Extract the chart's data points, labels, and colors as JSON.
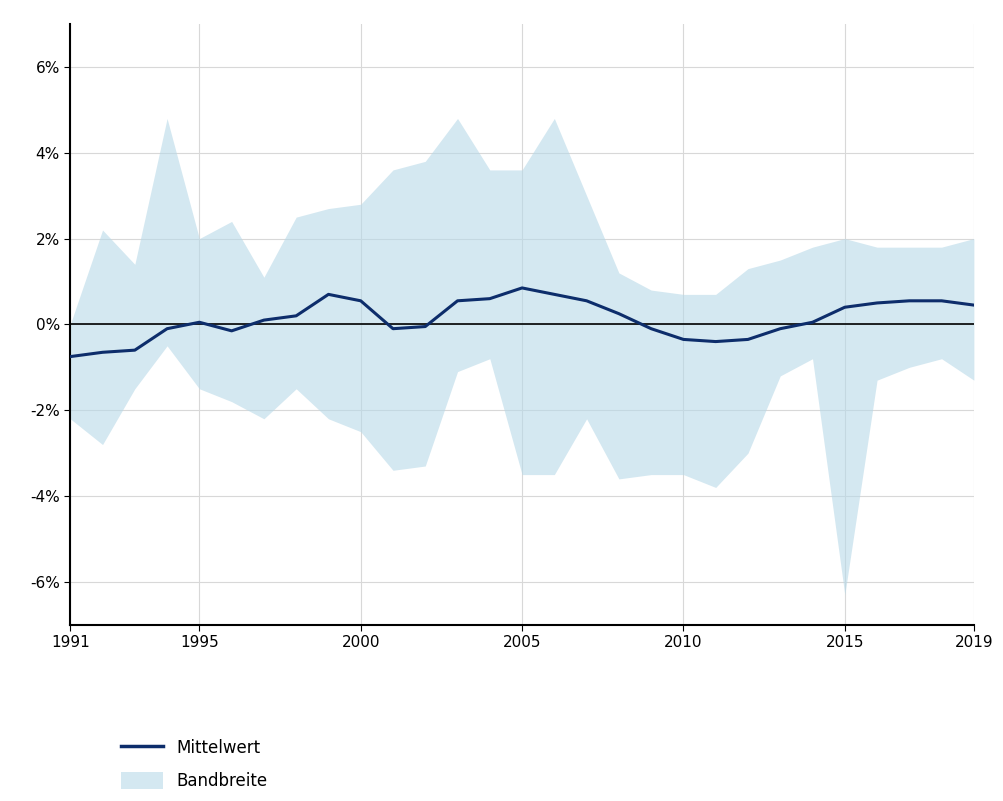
{
  "years": [
    1991,
    1992,
    1993,
    1994,
    1995,
    1996,
    1997,
    1998,
    1999,
    2000,
    2001,
    2002,
    2003,
    2004,
    2005,
    2006,
    2007,
    2008,
    2009,
    2010,
    2011,
    2012,
    2013,
    2014,
    2015,
    2016,
    2017,
    2018,
    2019
  ],
  "mean": [
    -0.75,
    -0.65,
    -0.6,
    -0.1,
    0.05,
    -0.15,
    0.1,
    0.2,
    0.7,
    0.55,
    -0.1,
    -0.05,
    0.55,
    0.6,
    0.85,
    0.7,
    0.55,
    0.25,
    -0.1,
    -0.35,
    -0.4,
    -0.35,
    -0.1,
    0.05,
    0.4,
    0.5,
    0.55,
    0.55,
    0.45
  ],
  "band_upper": [
    0.0,
    2.2,
    1.4,
    4.8,
    2.0,
    2.4,
    1.1,
    2.5,
    2.7,
    2.8,
    3.6,
    3.8,
    4.8,
    3.6,
    3.6,
    4.8,
    3.0,
    1.2,
    0.8,
    0.7,
    0.7,
    1.3,
    1.5,
    1.8,
    2.0,
    1.8,
    1.8,
    1.8,
    2.0
  ],
  "band_lower": [
    -2.2,
    -2.8,
    -1.5,
    -0.5,
    -1.5,
    -1.8,
    -2.2,
    -1.5,
    -2.2,
    -2.5,
    -3.4,
    -3.3,
    -1.1,
    -0.8,
    -3.5,
    -3.5,
    -2.2,
    -3.6,
    -3.5,
    -3.5,
    -3.8,
    -3.0,
    -1.2,
    -0.8,
    -6.3,
    -1.3,
    -1.0,
    -0.8,
    -1.3
  ],
  "line_color": "#0d2d6b",
  "band_color": "#b8d9e8",
  "band_alpha": 0.6,
  "background_color": "#ffffff",
  "zero_line_color": "#000000",
  "grid_color": "#d8d8d8",
  "yticks": [
    -6,
    -4,
    -2,
    0,
    2,
    4,
    6
  ],
  "ytick_labels": [
    "-6%",
    "-4%",
    "-2%",
    "0%",
    "2%",
    "4%",
    "6%"
  ],
  "xticks": [
    1991,
    1995,
    2000,
    2005,
    2010,
    2015,
    2019
  ],
  "legend_mittelwert": "Mittelwert",
  "legend_bandbreite": "Bandbreite",
  "ylim": [
    -7,
    7
  ]
}
